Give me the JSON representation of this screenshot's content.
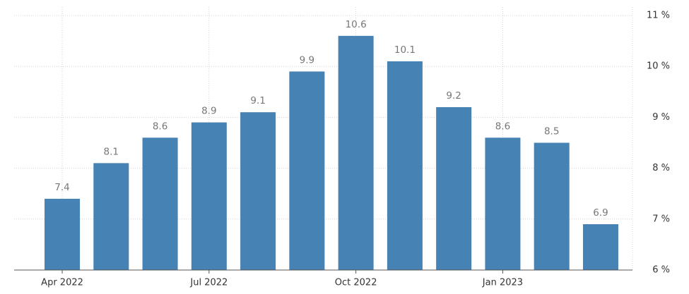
{
  "chart_data": {
    "type": "bar",
    "categories": [
      "Apr 2022",
      null,
      null,
      "Jul 2022",
      null,
      null,
      "Oct 2022",
      null,
      null,
      "Jan 2023",
      null,
      null
    ],
    "values": [
      7.4,
      8.1,
      8.6,
      8.9,
      9.1,
      9.9,
      10.6,
      10.1,
      9.2,
      8.6,
      8.5,
      6.9
    ],
    "color": "#4682b4",
    "ylim": [
      6,
      11
    ],
    "yticks": [
      {
        "value": 6,
        "label": "6 %"
      },
      {
        "value": 7,
        "label": "7 %"
      },
      {
        "value": 8,
        "label": "8 %"
      },
      {
        "value": 9,
        "label": "9 %"
      },
      {
        "value": 10,
        "label": "10 %"
      },
      {
        "value": 11,
        "label": "11 %"
      }
    ],
    "grid": true
  }
}
